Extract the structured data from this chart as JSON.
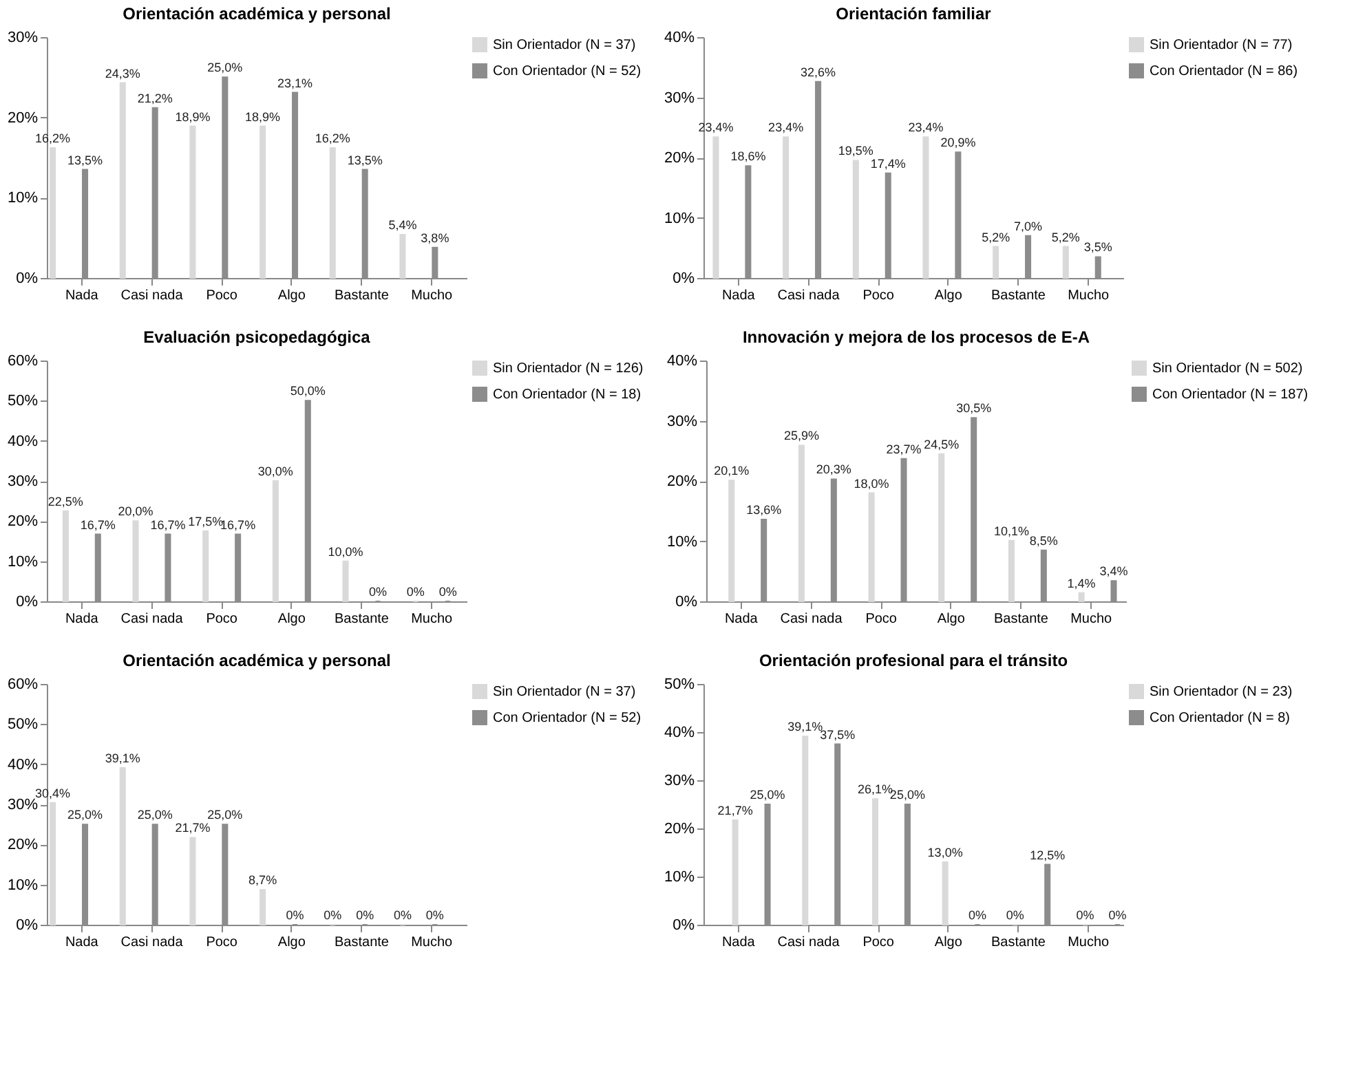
{
  "chart_data": [
    {
      "type": "bar",
      "title": "Orientación académica y personal",
      "categories": [
        "Nada",
        "Casi nada",
        "Poco",
        "Algo",
        "Bastante",
        "Mucho"
      ],
      "ylim": [
        0,
        30
      ],
      "yticks": [
        {
          "value": 0,
          "label": "0%"
        },
        {
          "value": 10,
          "label": "10%"
        },
        {
          "value": 20,
          "label": "20%"
        },
        {
          "value": 30,
          "label": "30%"
        }
      ],
      "legend": "right",
      "grid": false,
      "series": [
        {
          "name": "Sin Orientador (N = 37)",
          "color": "#d9d9d9",
          "values": [
            16.2,
            24.3,
            18.9,
            18.9,
            16.2,
            5.4
          ],
          "value_labels": [
            "16,2%",
            "24,3%",
            "18,9%",
            "18,9%",
            "16,2%",
            "5,4%"
          ]
        },
        {
          "name": "Con Orientador (N = 52)",
          "color": "#8c8c8c",
          "values": [
            13.5,
            21.2,
            25.0,
            23.1,
            13.5,
            3.8
          ],
          "value_labels": [
            "13,5%",
            "21,2%",
            "25,0%",
            "23,1%",
            "13,5%",
            "3,8%"
          ]
        }
      ]
    },
    {
      "type": "bar",
      "title": "Orientación familiar",
      "categories": [
        "Nada",
        "Casi nada",
        "Poco",
        "Algo",
        "Bastante",
        "Mucho"
      ],
      "ylim": [
        0,
        40
      ],
      "yticks": [
        {
          "value": 0,
          "label": "0%"
        },
        {
          "value": 10,
          "label": "10%"
        },
        {
          "value": 20,
          "label": "20%"
        },
        {
          "value": 30,
          "label": "30%"
        },
        {
          "value": 40,
          "label": "40%"
        }
      ],
      "legend": "right",
      "grid": false,
      "series": [
        {
          "name": "Sin Orientador (N = 77)",
          "color": "#d9d9d9",
          "values": [
            23.4,
            23.4,
            19.5,
            23.4,
            5.2,
            5.2
          ],
          "value_labels": [
            "23,4%",
            "23,4%",
            "19,5%",
            "23,4%",
            "5,2%",
            "5,2%"
          ]
        },
        {
          "name": "Con Orientador (N = 86)",
          "color": "#8c8c8c",
          "values": [
            18.6,
            32.6,
            17.4,
            20.9,
            7.0,
            3.5
          ],
          "value_labels": [
            "18,6%",
            "32,6%",
            "17,4%",
            "20,9%",
            "7,0%",
            "3,5%"
          ]
        }
      ]
    },
    {
      "type": "bar",
      "title": "Evaluación psicopedagógica",
      "categories": [
        "Nada",
        "Casi nada",
        "Poco",
        "Algo",
        "Bastante",
        "Mucho"
      ],
      "ylim": [
        0,
        60
      ],
      "yticks": [
        {
          "value": 0,
          "label": "0%"
        },
        {
          "value": 10,
          "label": "10%"
        },
        {
          "value": 20,
          "label": "20%"
        },
        {
          "value": 30,
          "label": "30%"
        },
        {
          "value": 40,
          "label": "40%"
        },
        {
          "value": 50,
          "label": "50%"
        },
        {
          "value": 60,
          "label": "60%"
        }
      ],
      "legend": "right",
      "grid": false,
      "series": [
        {
          "name": "Sin Orientador (N = 126)",
          "color": "#d9d9d9",
          "values": [
            22.5,
            20.0,
            17.5,
            30.0,
            10.0,
            0
          ],
          "value_labels": [
            "22,5%",
            "20,0%",
            "17,5%",
            "30,0%",
            "10,0%",
            "0%"
          ]
        },
        {
          "name": "Con Orientador (N = 18)",
          "color": "#8c8c8c",
          "values": [
            16.7,
            16.7,
            16.7,
            50.0,
            0,
            0
          ],
          "value_labels": [
            "16,7%",
            "16,7%",
            "16,7%",
            "50,0%",
            "0%",
            "0%"
          ]
        }
      ]
    },
    {
      "type": "bar",
      "title": "Innovación y mejora de los procesos de E-A",
      "categories": [
        "Nada",
        "Casi nada",
        "Poco",
        "Algo",
        "Bastante",
        "Mucho"
      ],
      "ylim": [
        0,
        40
      ],
      "yticks": [
        {
          "value": 0,
          "label": "0%"
        },
        {
          "value": 10,
          "label": "10%"
        },
        {
          "value": 20,
          "label": "20%"
        },
        {
          "value": 30,
          "label": "30%"
        },
        {
          "value": 40,
          "label": "40%"
        }
      ],
      "legend": "right",
      "grid": false,
      "series": [
        {
          "name": "Sin Orientador (N = 502)",
          "color": "#d9d9d9",
          "values": [
            20.1,
            25.9,
            18.0,
            24.5,
            10.1,
            1.4
          ],
          "value_labels": [
            "20,1%",
            "25,9%",
            "18,0%",
            "24,5%",
            "10,1%",
            "1,4%"
          ]
        },
        {
          "name": "Con Orientador (N = 187)",
          "color": "#8c8c8c",
          "values": [
            13.6,
            20.3,
            23.7,
            30.5,
            8.5,
            3.4
          ],
          "value_labels": [
            "13,6%",
            "20,3%",
            "23,7%",
            "30,5%",
            "8,5%",
            "3,4%"
          ]
        }
      ]
    },
    {
      "type": "bar",
      "title": "Orientación académica y personal",
      "categories": [
        "Nada",
        "Casi nada",
        "Poco",
        "Algo",
        "Bastante",
        "Mucho"
      ],
      "ylim": [
        0,
        60
      ],
      "yticks": [
        {
          "value": 0,
          "label": "0%"
        },
        {
          "value": 10,
          "label": "10%"
        },
        {
          "value": 20,
          "label": "20%"
        },
        {
          "value": 30,
          "label": "30%"
        },
        {
          "value": 40,
          "label": "40%"
        },
        {
          "value": 50,
          "label": "50%"
        },
        {
          "value": 60,
          "label": "60%"
        }
      ],
      "legend": "right",
      "grid": false,
      "series": [
        {
          "name": "Sin Orientador (N = 37)",
          "color": "#d9d9d9",
          "values": [
            30.4,
            39.1,
            21.7,
            8.7,
            0,
            0
          ],
          "value_labels": [
            "30,4%",
            "39,1%",
            "21,7%",
            "8,7%",
            "0%",
            "0%"
          ]
        },
        {
          "name": "Con Orientador (N = 52)",
          "color": "#8c8c8c",
          "values": [
            25.0,
            25.0,
            25.0,
            0,
            0,
            0
          ],
          "value_labels": [
            "25,0%",
            "25,0%",
            "25,0%",
            "0%",
            "0%",
            "0%"
          ]
        }
      ]
    },
    {
      "type": "bar",
      "title": "Orientación profesional para el tránsito",
      "categories": [
        "Nada",
        "Casi nada",
        "Poco",
        "Algo",
        "Bastante",
        "Mucho"
      ],
      "ylim": [
        0,
        50
      ],
      "yticks": [
        {
          "value": 0,
          "label": "0%"
        },
        {
          "value": 10,
          "label": "10%"
        },
        {
          "value": 20,
          "label": "20%"
        },
        {
          "value": 30,
          "label": "30%"
        },
        {
          "value": 40,
          "label": "40%"
        },
        {
          "value": 50,
          "label": "50%"
        }
      ],
      "legend": "right",
      "grid": false,
      "series": [
        {
          "name": "Sin Orientador (N = 23)",
          "color": "#d9d9d9",
          "values": [
            21.7,
            39.1,
            26.1,
            13.0,
            0,
            0
          ],
          "value_labels": [
            "21,7%",
            "39,1%",
            "26,1%",
            "13,0%",
            "0%",
            "0%"
          ]
        },
        {
          "name": "Con Orientador (N = 8)",
          "color": "#8c8c8c",
          "values": [
            25.0,
            37.5,
            25.0,
            0,
            12.5,
            0
          ],
          "value_labels": [
            "25,0%",
            "37,5%",
            "25,0%",
            "0%",
            "12,5%",
            "0%"
          ]
        }
      ]
    }
  ]
}
